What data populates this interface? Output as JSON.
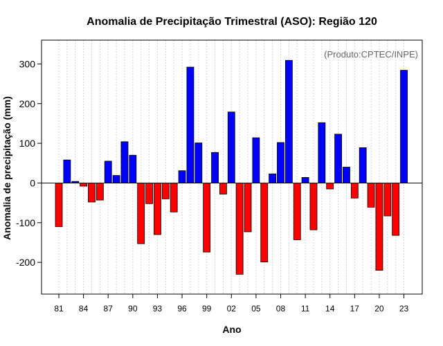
{
  "chart_data": {
    "type": "bar",
    "title": "Anomalia de Precipitação Trimestral (ASO): Região 120",
    "xlabel": "Ano",
    "ylabel": "Anomalia de precipitação (mm)",
    "annotation": "(Produto:CPTEC/INPE)",
    "ylim": [
      -280,
      360
    ],
    "yticks": [
      -200,
      -100,
      0,
      100,
      200,
      300
    ],
    "xtick_labels": [
      "81",
      "84",
      "87",
      "90",
      "93",
      "96",
      "99",
      "02",
      "05",
      "08",
      "11",
      "14",
      "17",
      "20",
      "23"
    ],
    "xtick_years": [
      1981,
      1984,
      1987,
      1990,
      1993,
      1996,
      1999,
      2002,
      2005,
      2008,
      2011,
      2014,
      2017,
      2020,
      2023
    ],
    "years": [
      1981,
      1982,
      1983,
      1984,
      1985,
      1986,
      1987,
      1988,
      1989,
      1990,
      1991,
      1992,
      1993,
      1994,
      1995,
      1996,
      1997,
      1998,
      1999,
      2000,
      2001,
      2002,
      2003,
      2004,
      2005,
      2006,
      2007,
      2008,
      2009,
      2010,
      2011,
      2012,
      2013,
      2014,
      2015,
      2016,
      2017,
      2018,
      2019,
      2020,
      2021,
      2022,
      2023
    ],
    "values": [
      -110,
      58,
      4,
      -8,
      -48,
      -43,
      55,
      19,
      104,
      70,
      -153,
      -52,
      -130,
      -40,
      -73,
      31,
      292,
      101,
      -174,
      77,
      -28,
      179,
      -230,
      -123,
      114,
      -199,
      23,
      102,
      309,
      -143,
      14,
      -118,
      152,
      -15,
      123,
      40,
      -38,
      89,
      -61,
      -220,
      -83,
      -132,
      284
    ],
    "positive_color": "#0000ff",
    "negative_color": "#ff0000",
    "grid": "vertical-dotted"
  }
}
